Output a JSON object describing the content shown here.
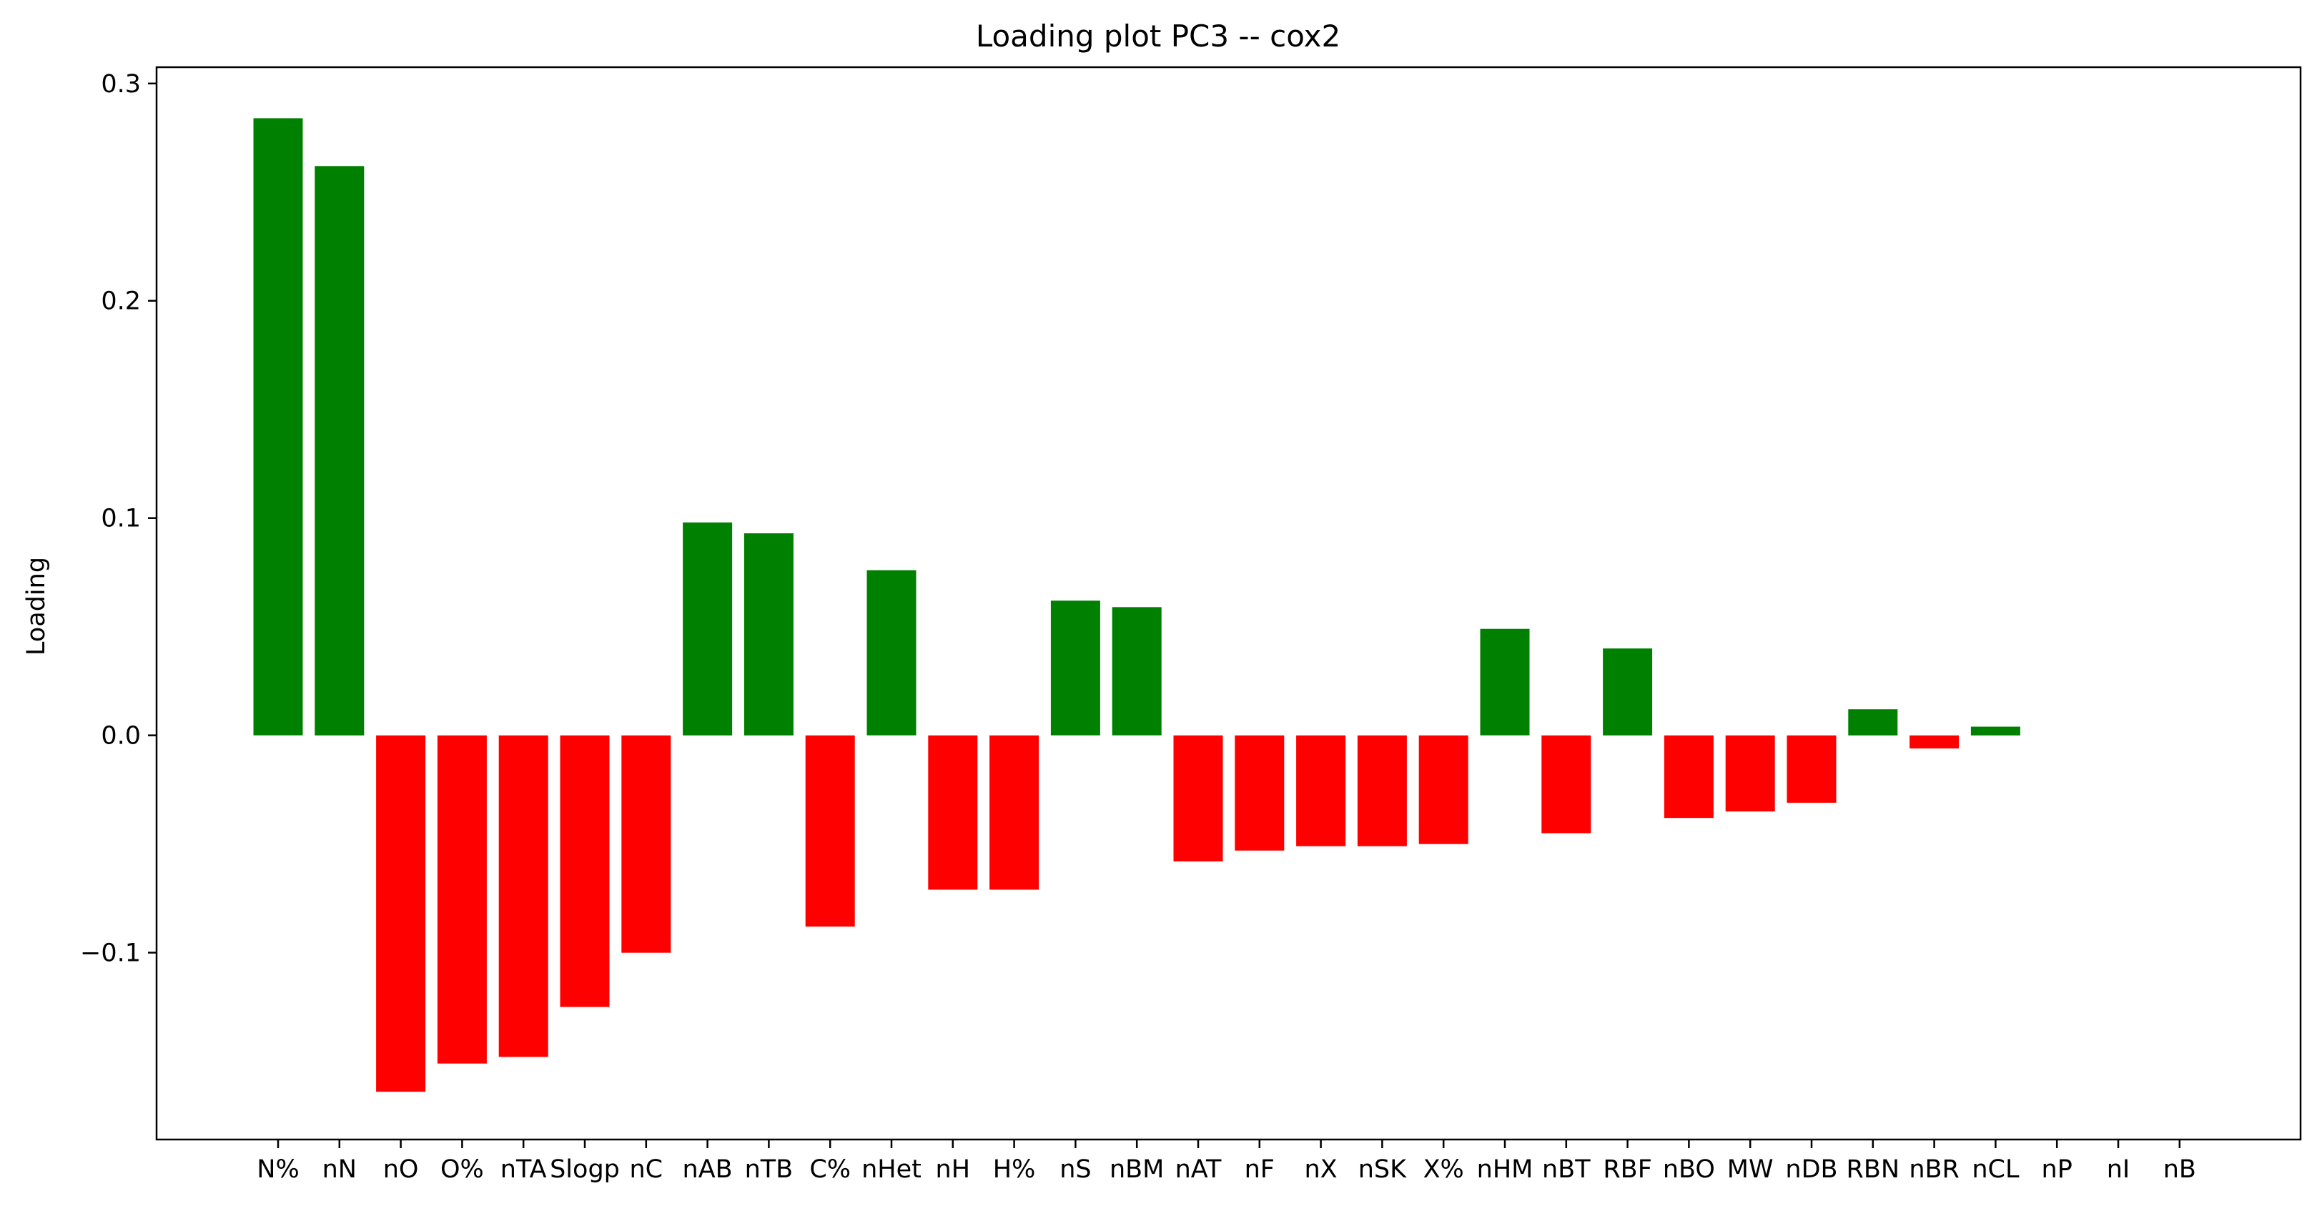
{
  "chart_data": {
    "type": "bar",
    "title": "Loading plot PC3 -- cox2",
    "xlabel": "",
    "ylabel": "Loading",
    "ylim": [
      -0.186,
      0.3075
    ],
    "yticks": [
      -0.1,
      0.0,
      0.1,
      0.2,
      0.3
    ],
    "ytick_labels": [
      "−0.1",
      "0.0",
      "0.1",
      "0.2",
      "0.3"
    ],
    "grid": false,
    "legend": "none",
    "positive_color": "#008000",
    "negative_color": "#ff0000",
    "categories": [
      "N%",
      "nN",
      "nO",
      "O%",
      "nTA",
      "Slogp",
      "nC",
      "nAB",
      "nTB",
      "C%",
      "nHet",
      "nH",
      "H%",
      "nS",
      "nBM",
      "nAT",
      "nF",
      "nX",
      "nSK",
      "X%",
      "nHM",
      "nBT",
      "RBF",
      "nBO",
      "MW",
      "nDB",
      "RBN",
      "nBR",
      "nCL",
      "nP",
      "nI",
      "nB"
    ],
    "values": [
      0.284,
      0.262,
      -0.164,
      -0.151,
      -0.148,
      -0.125,
      -0.1,
      0.098,
      0.093,
      -0.088,
      0.076,
      -0.071,
      -0.071,
      0.062,
      0.059,
      -0.058,
      -0.053,
      -0.051,
      -0.051,
      -0.05,
      0.049,
      -0.045,
      0.04,
      -0.038,
      -0.035,
      -0.031,
      0.012,
      -0.006,
      0.004,
      0.0,
      0.0,
      0.0
    ]
  }
}
